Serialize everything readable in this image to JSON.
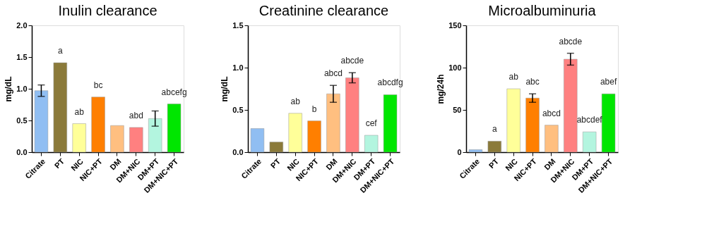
{
  "chart_data": [
    {
      "type": "bar",
      "title": "Inulin clearance",
      "ylabel": "mg/dL",
      "categories": [
        "Citrate",
        "PT",
        "NIC",
        "NIC+PT",
        "DM",
        "DM+NIC",
        "DM+PT",
        "DM+NIC+PT"
      ],
      "values": [
        0.97,
        1.41,
        0.45,
        0.87,
        0.42,
        0.39,
        0.53,
        0.76
      ],
      "errors": [
        0.09,
        null,
        null,
        null,
        null,
        null,
        0.12,
        null
      ],
      "colors": [
        "#90bef2",
        "#8b7a3a",
        "#ffff99",
        "#ff7f00",
        "#ffbf80",
        "#ff8080",
        "#b3f5df",
        "#00e600"
      ],
      "ylim": [
        0,
        2
      ],
      "yticks": [
        {
          "value": 0,
          "label": "0.0"
        },
        {
          "value": 0.5,
          "label": "0.5"
        },
        {
          "value": 1,
          "label": "1.0"
        },
        {
          "value": 1.5,
          "label": "1.5"
        },
        {
          "value": 2,
          "label": "2.0"
        }
      ],
      "grid": false,
      "legend": false,
      "value_labels": [
        null,
        "a",
        "ab",
        "bc",
        null,
        "abd",
        null,
        "abcefg"
      ]
    },
    {
      "type": "bar",
      "title": "Creatinine clearance",
      "ylabel": "mg/dL",
      "categories": [
        "Citrate",
        "PT",
        "NIC",
        "NIC+PT",
        "DM",
        "DM+NIC",
        "DM+PT",
        "DM+NIC+PT"
      ],
      "values": [
        0.28,
        0.12,
        0.46,
        0.37,
        0.69,
        0.88,
        0.2,
        0.68
      ],
      "errors": [
        null,
        null,
        null,
        null,
        0.1,
        0.06,
        null,
        null
      ],
      "colors": [
        "#90bef2",
        "#8b7a3a",
        "#ffff99",
        "#ff7f00",
        "#ffbf80",
        "#ff8080",
        "#b3f5df",
        "#00e600"
      ],
      "ylim": [
        0,
        1.5
      ],
      "yticks": [
        {
          "value": 0,
          "label": "0.0"
        },
        {
          "value": 0.5,
          "label": "0.5"
        },
        {
          "value": 1,
          "label": "1.0"
        },
        {
          "value": 1.5,
          "label": "1.5"
        }
      ],
      "grid": false,
      "legend": false,
      "value_labels": [
        null,
        null,
        "ab",
        "b",
        "abcd",
        "abcde",
        "cef",
        "abcdfg"
      ]
    },
    {
      "type": "bar",
      "title": "Microalbuminuria",
      "ylabel": "mg/24h",
      "categories": [
        "Citrate",
        "PT",
        "NIC",
        "NIC+PT",
        "DM",
        "DM+NIC",
        "DM+PT",
        "DM+NIC+PT"
      ],
      "values": [
        3,
        13,
        75,
        64,
        32,
        110,
        24,
        69
      ],
      "errors": [
        null,
        null,
        null,
        5,
        null,
        7,
        null,
        null
      ],
      "colors": [
        "#90bef2",
        "#8b7a3a",
        "#ffff99",
        "#ff7f00",
        "#ffbf80",
        "#ff8080",
        "#b3f5df",
        "#00e600"
      ],
      "ylim": [
        0,
        150
      ],
      "yticks": [
        0,
        50,
        100,
        150
      ],
      "grid": false,
      "legend": false,
      "value_labels": [
        null,
        "a",
        "ab",
        "abc",
        "abcd",
        "abcde",
        "abcdef",
        "abef"
      ]
    }
  ]
}
